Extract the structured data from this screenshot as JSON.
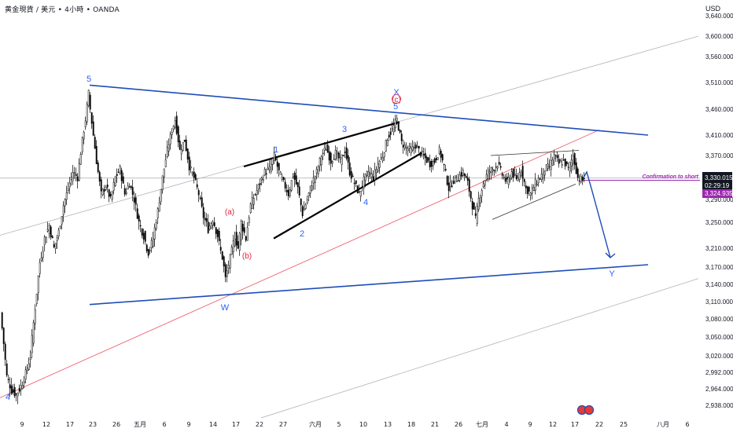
{
  "header": {
    "symbol_line": "黄金現貨 / 美元 • 4小時 • OANDA",
    "currency": "USD"
  },
  "colors": {
    "wave_blue": "#2962ff",
    "wave_red": "#e91e3c",
    "trendline_blue": "#1e4db7",
    "red_line": "#f06373",
    "gray_channel": "#b0b3b8",
    "purple": "#9c27b0",
    "price_tag_dark": "#131722"
  },
  "chart_data": {
    "type": "candlestick",
    "instrument": "XAU/USD",
    "timeframe": "4H",
    "y_ticks": [
      "3,600.000",
      "3,560.000",
      "3,510.000",
      "3,460.000",
      "3,410.000",
      "3,370.000",
      "3,290.000",
      "3,250.000",
      "3,210.000",
      "3,170.000",
      "3,140.000",
      "3,110.000",
      "3,080.000",
      "3,050.000",
      "3,020.000",
      "2,992.000",
      "2,964.000",
      "2,938.000"
    ],
    "y_ticks_partial": [
      "3,640.000"
    ],
    "x_ticks": [
      "9",
      "12",
      "17",
      "23",
      "26",
      "五月",
      "6",
      "9",
      "14",
      "17",
      "22",
      "27",
      "六月",
      "5",
      "10",
      "13",
      "18",
      "21",
      "26",
      "七月",
      "4",
      "9",
      "12",
      "17",
      "22",
      "25",
      "八月",
      "6"
    ],
    "current_price": {
      "value": "3,330.015",
      "countdown": "02:29:19",
      "second_value": "3,324.935"
    },
    "annotation": "Confirmation to short",
    "wave_labels_blue": [
      "5",
      "W",
      "1",
      "2",
      "3",
      "4",
      "X",
      "5",
      "Y",
      "4"
    ],
    "wave_labels_red": [
      "(a)",
      "(b)",
      "(c)"
    ],
    "close_path": [
      [
        0,
        3090
      ],
      [
        4,
        3040
      ],
      [
        8,
        2985
      ],
      [
        14,
        2962
      ],
      [
        20,
        2955
      ],
      [
        26,
        2968
      ],
      [
        32,
        2990
      ],
      [
        38,
        3020
      ],
      [
        44,
        3100
      ],
      [
        50,
        3180
      ],
      [
        56,
        3225
      ],
      [
        62,
        3245
      ],
      [
        68,
        3210
      ],
      [
        74,
        3235
      ],
      [
        80,
        3280
      ],
      [
        86,
        3310
      ],
      [
        92,
        3340
      ],
      [
        98,
        3330
      ],
      [
        104,
        3400
      ],
      [
        108,
        3440
      ],
      [
        112,
        3490
      ],
      [
        114,
        3460
      ],
      [
        118,
        3410
      ],
      [
        122,
        3360
      ],
      [
        128,
        3300
      ],
      [
        134,
        3315
      ],
      [
        140,
        3290
      ],
      [
        146,
        3330
      ],
      [
        152,
        3345
      ],
      [
        158,
        3300
      ],
      [
        164,
        3320
      ],
      [
        170,
        3290
      ],
      [
        176,
        3250
      ],
      [
        182,
        3230
      ],
      [
        188,
        3200
      ],
      [
        194,
        3225
      ],
      [
        200,
        3270
      ],
      [
        206,
        3330
      ],
      [
        212,
        3380
      ],
      [
        218,
        3420
      ],
      [
        222,
        3440
      ],
      [
        228,
        3380
      ],
      [
        234,
        3400
      ],
      [
        240,
        3350
      ],
      [
        246,
        3330
      ],
      [
        252,
        3300
      ],
      [
        258,
        3260
      ],
      [
        264,
        3240
      ],
      [
        270,
        3255
      ],
      [
        276,
        3230
      ],
      [
        282,
        3190
      ],
      [
        286,
        3150
      ],
      [
        290,
        3175
      ],
      [
        294,
        3205
      ],
      [
        298,
        3230
      ],
      [
        302,
        3210
      ],
      [
        306,
        3250
      ],
      [
        312,
        3225
      ],
      [
        318,
        3280
      ],
      [
        324,
        3300
      ],
      [
        330,
        3320
      ],
      [
        336,
        3340
      ],
      [
        342,
        3345
      ],
      [
        348,
        3370
      ],
      [
        354,
        3340
      ],
      [
        360,
        3320
      ],
      [
        366,
        3300
      ],
      [
        372,
        3335
      ],
      [
        378,
        3310
      ],
      [
        384,
        3265
      ],
      [
        390,
        3290
      ],
      [
        396,
        3320
      ],
      [
        402,
        3340
      ],
      [
        408,
        3370
      ],
      [
        414,
        3385
      ],
      [
        420,
        3360
      ],
      [
        426,
        3375
      ],
      [
        432,
        3360
      ],
      [
        438,
        3380
      ],
      [
        444,
        3340
      ],
      [
        450,
        3320
      ],
      [
        456,
        3300
      ],
      [
        462,
        3325
      ],
      [
        468,
        3340
      ],
      [
        474,
        3330
      ],
      [
        480,
        3355
      ],
      [
        486,
        3370
      ],
      [
        492,
        3405
      ],
      [
        498,
        3420
      ],
      [
        504,
        3440
      ],
      [
        510,
        3395
      ],
      [
        516,
        3385
      ],
      [
        522,
        3380
      ],
      [
        528,
        3390
      ],
      [
        534,
        3375
      ],
      [
        540,
        3365
      ],
      [
        546,
        3355
      ],
      [
        552,
        3360
      ],
      [
        558,
        3380
      ],
      [
        564,
        3350
      ],
      [
        570,
        3310
      ],
      [
        576,
        3325
      ],
      [
        582,
        3330
      ],
      [
        588,
        3340
      ],
      [
        594,
        3320
      ],
      [
        600,
        3280
      ],
      [
        604,
        3255
      ],
      [
        608,
        3290
      ],
      [
        614,
        3320
      ],
      [
        620,
        3340
      ],
      [
        626,
        3345
      ],
      [
        632,
        3355
      ],
      [
        638,
        3335
      ],
      [
        644,
        3320
      ],
      [
        650,
        3340
      ],
      [
        656,
        3325
      ],
      [
        662,
        3345
      ],
      [
        668,
        3310
      ],
      [
        674,
        3300
      ],
      [
        680,
        3320
      ],
      [
        686,
        3330
      ],
      [
        692,
        3345
      ],
      [
        698,
        3350
      ],
      [
        704,
        3370
      ],
      [
        710,
        3355
      ],
      [
        716,
        3360
      ],
      [
        722,
        3345
      ],
      [
        728,
        3370
      ],
      [
        734,
        3330
      ],
      [
        740,
        3325
      ],
      [
        742,
        3330
      ]
    ],
    "projection": [
      [
        742,
        3330
      ],
      [
        746,
        3340
      ],
      [
        752,
        3310
      ],
      [
        776,
        3190
      ]
    ],
    "lines": {
      "upper_blue": [
        [
          114,
          3505
        ],
        [
          824,
          3410
        ]
      ],
      "lower_blue": [
        [
          114,
          3105
        ],
        [
          824,
          3175
        ]
      ],
      "red_rising": [
        [
          0,
          2950
        ],
        [
          762,
          3420
        ]
      ],
      "gray_upper": [
        [
          0,
          3230
        ],
        [
          888,
          3600
        ]
      ],
      "gray_lower": [
        [
          286,
          2900
        ],
        [
          888,
          3150
        ]
      ],
      "wedge_upper_black": [
        [
          310,
          3350
        ],
        [
          508,
          3435
        ]
      ],
      "wedge_lower_black": [
        [
          348,
          3225
        ],
        [
          536,
          3375
        ]
      ],
      "flag_upper_thin": [
        [
          624,
          3370
        ],
        [
          736,
          3380
        ]
      ],
      "flag_lower_thin": [
        [
          626,
          3255
        ],
        [
          732,
          3318
        ]
      ],
      "horizontal_gray": [
        [
          0,
          3329
        ],
        [
          890,
          3329
        ]
      ],
      "purple_level": [
        [
          740,
          3325
        ],
        [
          890,
          3325
        ]
      ]
    }
  }
}
